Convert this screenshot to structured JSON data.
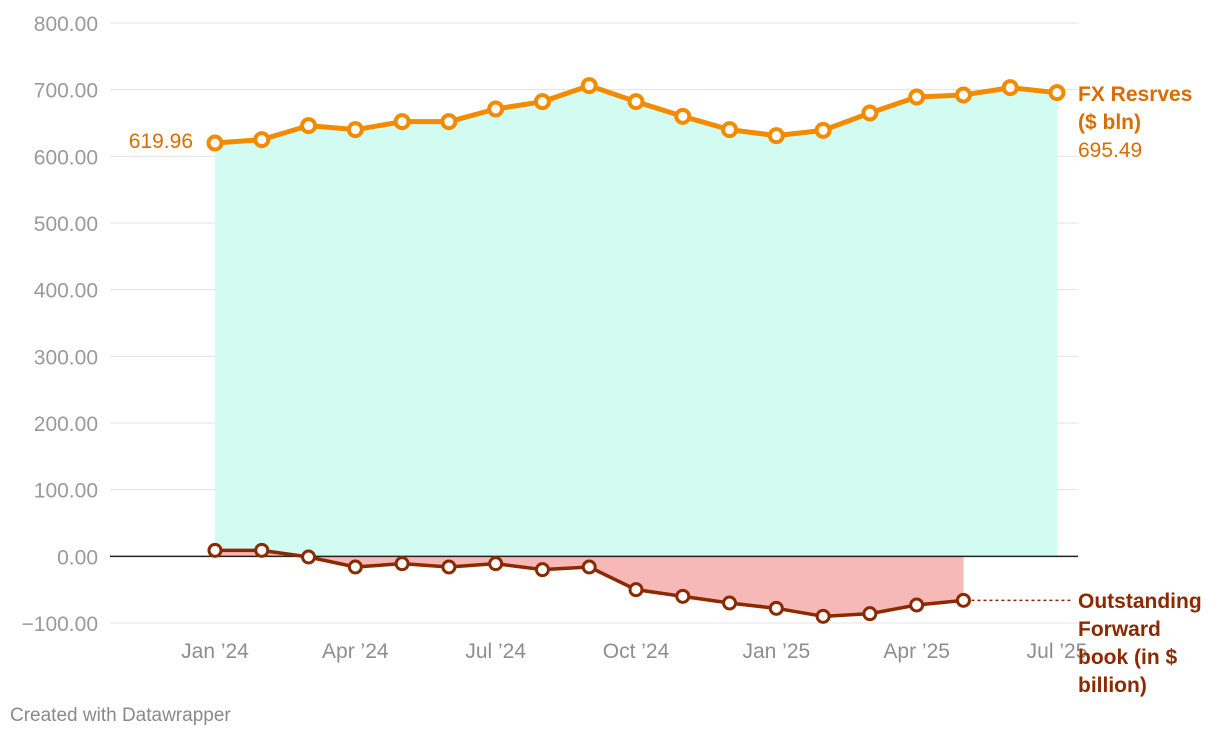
{
  "chart_data": {
    "type": "area",
    "ylim": [
      -100,
      800
    ],
    "yticks": [
      800,
      700,
      600,
      500,
      400,
      300,
      200,
      100,
      0,
      -100
    ],
    "ytick_labels": [
      "800.00",
      "700.00",
      "600.00",
      "500.00",
      "400.00",
      "300.00",
      "200.00",
      "100.00",
      "0.00",
      "−100.00"
    ],
    "xticks": [
      {
        "label": "Jan ’24",
        "index": 0
      },
      {
        "label": "Apr ’24",
        "index": 3
      },
      {
        "label": "Jul ’24",
        "index": 6
      },
      {
        "label": "Oct ’24",
        "index": 9
      },
      {
        "label": "Jan ’25",
        "index": 12
      },
      {
        "label": "Apr ’25",
        "index": 15
      },
      {
        "label": "Jul ’25",
        "index": 18
      }
    ],
    "months": [
      "Jan 2024",
      "Feb 2024",
      "Mar 2024",
      "Apr 2024",
      "May 2024",
      "Jun 2024",
      "Jul 2024",
      "Aug 2024",
      "Sep 2024",
      "Oct 2024",
      "Nov 2024",
      "Dec 2024",
      "Jan 2025",
      "Feb 2025",
      "Mar 2025",
      "Apr 2025",
      "May 2025",
      "Jun 2025",
      "Jul 2025"
    ],
    "series": [
      {
        "name": "FX Resrves ($ bln)",
        "label_lines": [
          "FX Resrves",
          "($ bln)"
        ],
        "color": "#f28b00",
        "fill": "#d2fbf1",
        "values": [
          619.96,
          625,
          646,
          640,
          652,
          652,
          671,
          682,
          706,
          682,
          660,
          640,
          631,
          639,
          665,
          689,
          692,
          703,
          695.49
        ],
        "start_label": "619.96",
        "end_label": "695.49"
      },
      {
        "name": "Outstanding Forward book (in $ billion)",
        "label_lines": [
          "Outstanding",
          "Forward",
          "book (in $",
          "billion)"
        ],
        "color": "#8b2a00",
        "fill": "#f7b8b8",
        "values": [
          9,
          9,
          -1,
          -16,
          -11,
          -16,
          -11,
          -20,
          -16,
          -50,
          -60,
          -70,
          -78,
          -90,
          -86,
          -73,
          -66
        ]
      }
    ]
  },
  "footer": {
    "credit": "Created with Datawrapper"
  }
}
